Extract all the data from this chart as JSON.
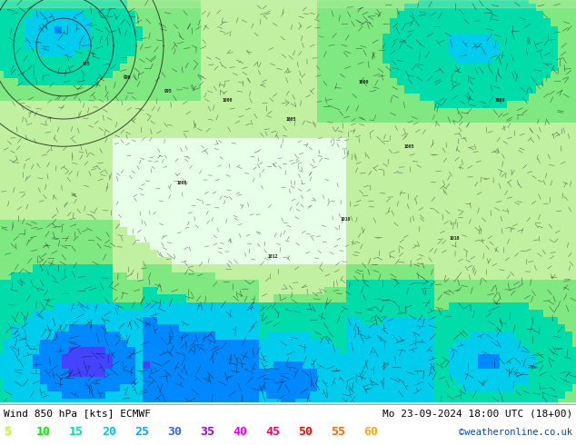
{
  "title_left": "Wind 850 hPa [kts] ECMWF",
  "title_right": "Mo 23-09-2024 18:00 UTC (18+00)",
  "credit": "©weatheronline.co.uk",
  "legend_values": [
    "5",
    "10",
    "15",
    "20",
    "25",
    "30",
    "35",
    "40",
    "45",
    "50",
    "55",
    "60"
  ],
  "legend_colors": [
    "#b0ff00",
    "#00ee00",
    "#00ddaa",
    "#00cccc",
    "#00aaff",
    "#3366ff",
    "#9900ff",
    "#ee00ee",
    "#ff0066",
    "#ff0000",
    "#ff6600",
    "#ffaa00"
  ],
  "bg_color": "#ffffff",
  "figsize": [
    6.34,
    4.9
  ],
  "dpi": 100,
  "map_light_green": "#b8e8a0",
  "map_dark_green": "#5a8a3a",
  "map_medium_green": "#7ab85a",
  "map_teal": "#00d4cc",
  "map_cyan": "#00ccee",
  "map_white": "#f5fff5",
  "map_grey_green": "#8ab878"
}
